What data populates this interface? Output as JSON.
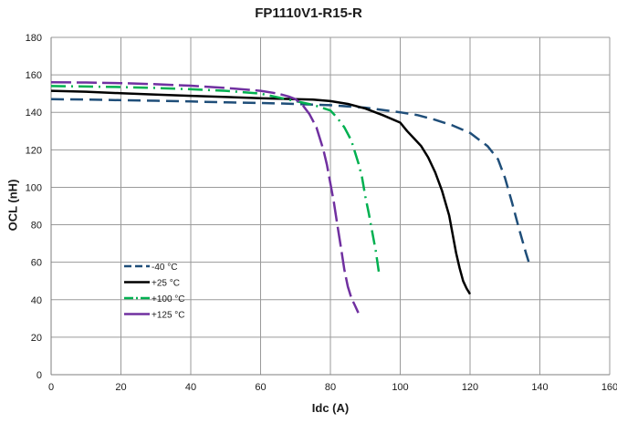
{
  "chart_data": {
    "type": "line",
    "title": "FP1110V1-R15-R",
    "xlabel": "Idc (A)",
    "ylabel": "OCL (nH)",
    "xlim": [
      0,
      160
    ],
    "ylim": [
      0,
      180
    ],
    "xticks": [
      0,
      20,
      40,
      60,
      80,
      100,
      120,
      140,
      160
    ],
    "yticks": [
      0,
      20,
      40,
      60,
      80,
      100,
      120,
      140,
      160,
      180
    ],
    "grid": true,
    "legend_position": "lower-left",
    "series": [
      {
        "name": "-40 °C",
        "color": "#1f4e79",
        "dash": "dash",
        "x": [
          0,
          10,
          20,
          30,
          40,
          50,
          60,
          70,
          80,
          90,
          100,
          105,
          110,
          115,
          120,
          125,
          128,
          130,
          132,
          134,
          136,
          137
        ],
        "y": [
          147,
          146.8,
          146.5,
          146.2,
          145.8,
          145.3,
          145,
          144.5,
          143.8,
          142.5,
          140,
          138.5,
          136,
          133,
          129,
          122,
          115,
          105,
          92,
          78,
          65,
          59
        ]
      },
      {
        "name": "+25 °C",
        "color": "#000000",
        "dash": "solid",
        "x": [
          0,
          10,
          20,
          30,
          40,
          50,
          60,
          70,
          75,
          80,
          85,
          90,
          95,
          100,
          102,
          104,
          106,
          108,
          110,
          112,
          114,
          115,
          116,
          117,
          118,
          119,
          120
        ],
        "y": [
          151.5,
          151,
          150.2,
          149.5,
          148.8,
          148.2,
          147.5,
          147,
          146.8,
          146,
          144.5,
          142,
          138.5,
          134.5,
          130,
          126,
          122,
          116,
          108,
          98,
          85,
          75,
          65,
          57,
          50,
          46,
          43
        ]
      },
      {
        "name": "+100 °C",
        "color": "#00b050",
        "dash": "dashdot",
        "x": [
          0,
          10,
          20,
          30,
          40,
          50,
          60,
          65,
          70,
          75,
          80,
          82,
          84,
          86,
          88,
          89,
          90,
          91,
          92,
          93,
          94
        ],
        "y": [
          154,
          153.8,
          153.5,
          153,
          152.3,
          151.5,
          150,
          148,
          146,
          144,
          141,
          137,
          132,
          125,
          113,
          106,
          95,
          86,
          76,
          66,
          53
        ]
      },
      {
        "name": "+125 °C",
        "color": "#7030a0",
        "dash": "longdash",
        "x": [
          0,
          10,
          20,
          30,
          40,
          50,
          60,
          65,
          68,
          70,
          72,
          74,
          76,
          78,
          79,
          80,
          81,
          82,
          83,
          84,
          85,
          86,
          87,
          88
        ],
        "y": [
          156,
          155.9,
          155.6,
          155,
          154.2,
          153,
          151.5,
          150,
          148.5,
          147,
          144,
          139,
          132,
          120,
          112,
          102,
          92,
          80,
          68,
          56,
          47,
          41,
          37,
          33
        ]
      }
    ]
  }
}
